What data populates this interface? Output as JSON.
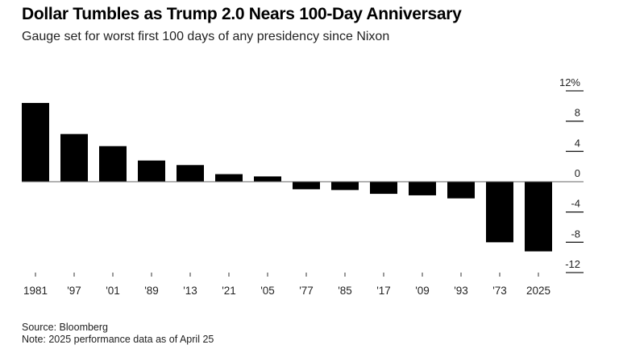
{
  "chart_data": {
    "type": "bar",
    "title": "Dollar Tumbles as Trump 2.0 Nears 100-Day Anniversary",
    "subtitle": "Gauge set for worst first 100 days of any presidency since Nixon",
    "categories": [
      "1981",
      "'97",
      "'01",
      "'89",
      "'13",
      "'21",
      "'05",
      "'77",
      "'85",
      "'17",
      "'09",
      "'93",
      "'73",
      "2025"
    ],
    "values": [
      10.4,
      6.3,
      4.7,
      2.8,
      2.2,
      1.0,
      0.7,
      -1.0,
      -1.1,
      -1.6,
      -1.8,
      -2.2,
      -8.0,
      -9.2
    ],
    "xlabel": "",
    "ylabel": "",
    "ylim": [
      -12,
      12
    ],
    "yticks": [
      12,
      8,
      4,
      0,
      -4,
      -8,
      -12
    ],
    "ytick_labels": [
      "12%",
      "8",
      "4",
      "0",
      "-4",
      "-8",
      "-12"
    ],
    "y_axis_side": "right",
    "bar_color": "#000000",
    "grid": false
  },
  "footer": {
    "source": "Source: Bloomberg",
    "note": "Note: 2025 performance data as of April 25"
  }
}
